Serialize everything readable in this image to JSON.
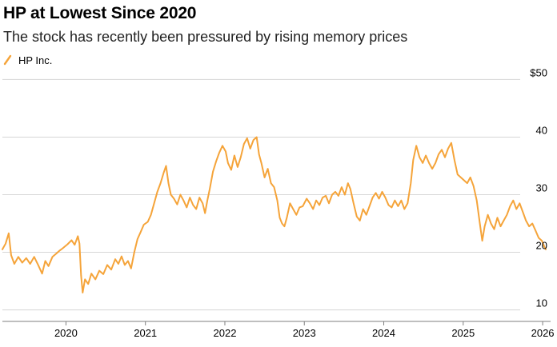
{
  "header": {
    "title": "HP at Lowest Since 2020",
    "subtitle": "The stock has recently been pressured by rising memory prices"
  },
  "colors": {
    "series": "#f5a43a",
    "grid": "#d6d6d6",
    "axis": "#7f7f7f"
  },
  "chart_data": {
    "type": "line",
    "legend_position": "top-left",
    "grid": true,
    "xlim": [
      2019.2,
      2026.1
    ],
    "ylim": [
      8,
      52
    ],
    "x_ticks": [
      2020,
      2021,
      2022,
      2023,
      2024,
      2025,
      2026
    ],
    "x_tick_labels": [
      "2020",
      "2021",
      "2022",
      "2023",
      "2024",
      "2025",
      "2026"
    ],
    "y_ticks": [
      50,
      40,
      30,
      20,
      10
    ],
    "y_tick_labels": [
      "$50",
      "40",
      "30",
      "20",
      "10"
    ],
    "series": [
      {
        "name": "HP Inc.",
        "points": [
          [
            2019.2,
            20.5
          ],
          [
            2019.24,
            21.5
          ],
          [
            2019.28,
            23.3
          ],
          [
            2019.31,
            19.5
          ],
          [
            2019.35,
            18.0
          ],
          [
            2019.4,
            19.2
          ],
          [
            2019.45,
            18.2
          ],
          [
            2019.5,
            19.0
          ],
          [
            2019.55,
            18.0
          ],
          [
            2019.6,
            19.2
          ],
          [
            2019.65,
            17.8
          ],
          [
            2019.7,
            16.3
          ],
          [
            2019.74,
            18.5
          ],
          [
            2019.78,
            17.6
          ],
          [
            2019.83,
            19.2
          ],
          [
            2019.88,
            19.8
          ],
          [
            2019.92,
            20.3
          ],
          [
            2019.96,
            20.7
          ],
          [
            2020.02,
            21.4
          ],
          [
            2020.07,
            22.1
          ],
          [
            2020.11,
            21.3
          ],
          [
            2020.15,
            22.8
          ],
          [
            2020.17,
            21.5
          ],
          [
            2020.19,
            16.0
          ],
          [
            2020.21,
            13.0
          ],
          [
            2020.24,
            15.3
          ],
          [
            2020.28,
            14.5
          ],
          [
            2020.32,
            16.3
          ],
          [
            2020.37,
            15.3
          ],
          [
            2020.42,
            16.8
          ],
          [
            2020.47,
            16.2
          ],
          [
            2020.52,
            17.8
          ],
          [
            2020.57,
            17.0
          ],
          [
            2020.62,
            18.8
          ],
          [
            2020.66,
            18.0
          ],
          [
            2020.7,
            19.3
          ],
          [
            2020.74,
            17.8
          ],
          [
            2020.78,
            18.5
          ],
          [
            2020.82,
            17.2
          ],
          [
            2020.86,
            20.0
          ],
          [
            2020.9,
            22.3
          ],
          [
            2020.94,
            23.5
          ],
          [
            2020.98,
            24.8
          ],
          [
            2021.03,
            25.3
          ],
          [
            2021.07,
            26.5
          ],
          [
            2021.11,
            28.5
          ],
          [
            2021.15,
            30.5
          ],
          [
            2021.19,
            32.0
          ],
          [
            2021.23,
            33.8
          ],
          [
            2021.26,
            35.0
          ],
          [
            2021.29,
            32.0
          ],
          [
            2021.32,
            30.0
          ],
          [
            2021.36,
            29.3
          ],
          [
            2021.4,
            28.3
          ],
          [
            2021.44,
            30.0
          ],
          [
            2021.48,
            29.0
          ],
          [
            2021.52,
            27.8
          ],
          [
            2021.56,
            29.5
          ],
          [
            2021.6,
            28.2
          ],
          [
            2021.64,
            27.5
          ],
          [
            2021.68,
            29.5
          ],
          [
            2021.72,
            28.5
          ],
          [
            2021.75,
            26.8
          ],
          [
            2021.78,
            29.0
          ],
          [
            2021.81,
            31.0
          ],
          [
            2021.85,
            34.0
          ],
          [
            2021.89,
            35.8
          ],
          [
            2021.93,
            37.3
          ],
          [
            2021.97,
            38.5
          ],
          [
            2022.01,
            37.5
          ],
          [
            2022.04,
            35.5
          ],
          [
            2022.08,
            34.3
          ],
          [
            2022.12,
            36.8
          ],
          [
            2022.16,
            34.8
          ],
          [
            2022.2,
            36.5
          ],
          [
            2022.24,
            38.8
          ],
          [
            2022.28,
            39.8
          ],
          [
            2022.32,
            38.0
          ],
          [
            2022.36,
            39.5
          ],
          [
            2022.4,
            40.0
          ],
          [
            2022.43,
            37.0
          ],
          [
            2022.46,
            35.5
          ],
          [
            2022.5,
            33.0
          ],
          [
            2022.54,
            34.5
          ],
          [
            2022.58,
            32.0
          ],
          [
            2022.62,
            31.3
          ],
          [
            2022.66,
            29.0
          ],
          [
            2022.69,
            26.0
          ],
          [
            2022.72,
            25.0
          ],
          [
            2022.75,
            24.5
          ],
          [
            2022.78,
            26.0
          ],
          [
            2022.82,
            28.5
          ],
          [
            2022.86,
            27.5
          ],
          [
            2022.9,
            26.5
          ],
          [
            2022.94,
            27.8
          ],
          [
            2022.98,
            28.0
          ],
          [
            2023.03,
            29.3
          ],
          [
            2023.07,
            28.5
          ],
          [
            2023.11,
            27.5
          ],
          [
            2023.15,
            29.0
          ],
          [
            2023.19,
            28.2
          ],
          [
            2023.23,
            29.5
          ],
          [
            2023.27,
            29.8
          ],
          [
            2023.31,
            28.5
          ],
          [
            2023.35,
            30.0
          ],
          [
            2023.39,
            30.5
          ],
          [
            2023.43,
            29.8
          ],
          [
            2023.47,
            31.3
          ],
          [
            2023.51,
            30.0
          ],
          [
            2023.55,
            32.0
          ],
          [
            2023.58,
            31.0
          ],
          [
            2023.62,
            28.5
          ],
          [
            2023.66,
            26.2
          ],
          [
            2023.7,
            25.5
          ],
          [
            2023.74,
            27.5
          ],
          [
            2023.78,
            26.5
          ],
          [
            2023.82,
            28.0
          ],
          [
            2023.86,
            29.5
          ],
          [
            2023.9,
            30.3
          ],
          [
            2023.94,
            29.3
          ],
          [
            2023.98,
            30.5
          ],
          [
            2024.02,
            29.5
          ],
          [
            2024.06,
            28.2
          ],
          [
            2024.1,
            27.8
          ],
          [
            2024.14,
            29.0
          ],
          [
            2024.18,
            28.0
          ],
          [
            2024.22,
            29.0
          ],
          [
            2024.26,
            27.5
          ],
          [
            2024.3,
            28.5
          ],
          [
            2024.34,
            32.0
          ],
          [
            2024.37,
            36.0
          ],
          [
            2024.41,
            38.5
          ],
          [
            2024.45,
            36.5
          ],
          [
            2024.49,
            35.5
          ],
          [
            2024.53,
            36.8
          ],
          [
            2024.57,
            35.5
          ],
          [
            2024.61,
            34.5
          ],
          [
            2024.65,
            35.5
          ],
          [
            2024.69,
            37.0
          ],
          [
            2024.73,
            37.8
          ],
          [
            2024.77,
            36.5
          ],
          [
            2024.81,
            38.0
          ],
          [
            2024.85,
            39.0
          ],
          [
            2024.89,
            36.0
          ],
          [
            2024.93,
            33.5
          ],
          [
            2024.97,
            33.0
          ],
          [
            2025.01,
            32.5
          ],
          [
            2025.05,
            32.0
          ],
          [
            2025.09,
            33.0
          ],
          [
            2025.13,
            31.5
          ],
          [
            2025.17,
            29.0
          ],
          [
            2025.21,
            25.0
          ],
          [
            2025.24,
            22.0
          ],
          [
            2025.27,
            24.5
          ],
          [
            2025.31,
            26.5
          ],
          [
            2025.35,
            25.0
          ],
          [
            2025.39,
            24.0
          ],
          [
            2025.43,
            26.0
          ],
          [
            2025.47,
            24.5
          ],
          [
            2025.51,
            25.5
          ],
          [
            2025.55,
            26.5
          ],
          [
            2025.59,
            28.0
          ],
          [
            2025.63,
            29.0
          ],
          [
            2025.67,
            27.5
          ],
          [
            2025.71,
            28.5
          ],
          [
            2025.75,
            27.0
          ],
          [
            2025.79,
            25.5
          ],
          [
            2025.83,
            24.5
          ],
          [
            2025.87,
            25.0
          ],
          [
            2025.91,
            23.8
          ],
          [
            2025.95,
            22.5
          ],
          [
            2025.99,
            22.0
          ],
          [
            2026.02,
            21.0
          ],
          [
            2026.04,
            20.5
          ]
        ]
      }
    ]
  }
}
